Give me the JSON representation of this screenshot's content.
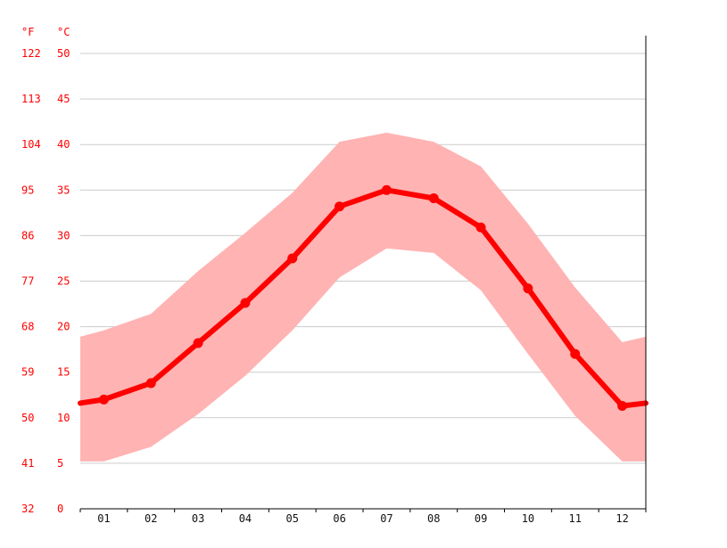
{
  "chart_data": {
    "type": "line",
    "title": "",
    "xlabel": "",
    "ylabel": "",
    "units": {
      "fahrenheit": "°F",
      "celsius": "°C"
    },
    "categories": [
      "01",
      "02",
      "03",
      "04",
      "05",
      "06",
      "07",
      "08",
      "09",
      "10",
      "11",
      "12"
    ],
    "series": [
      {
        "values": [
          12.0,
          13.8,
          18.2,
          22.6,
          27.5,
          33.2,
          35.0,
          34.1,
          30.9,
          24.2,
          17.0,
          11.3
        ]
      }
    ],
    "range": {
      "low": [
        5.2,
        6.8,
        10.4,
        14.6,
        19.6,
        25.4,
        28.6,
        28.1,
        24.0,
        17.0,
        10.2,
        5.2
      ],
      "high": [
        19.6,
        21.4,
        26.1,
        30.3,
        34.7,
        40.3,
        41.3,
        40.3,
        37.6,
        31.3,
        24.3,
        18.3
      ]
    },
    "edge_values": {
      "start": {
        "line": 11.6,
        "low": 5.2,
        "high": 18.9
      },
      "end": {
        "line": 11.6,
        "low": 5.2,
        "high": 18.9
      }
    },
    "y_celsius_ticks": [
      "0",
      "5",
      "10",
      "15",
      "20",
      "25",
      "30",
      "35",
      "40",
      "45",
      "50"
    ],
    "y_fahrenheit_ticks": [
      "32",
      "41",
      "50",
      "59",
      "68",
      "77",
      "86",
      "95",
      "104",
      "113",
      "122"
    ],
    "ylim": [
      0,
      50
    ],
    "grid": true,
    "legend": "none",
    "colors": {
      "line": "#ff0000",
      "band": "#ffb3b3",
      "grid": "#cccccc",
      "tick_text": "#ff0000",
      "x_text": "#111111"
    }
  }
}
